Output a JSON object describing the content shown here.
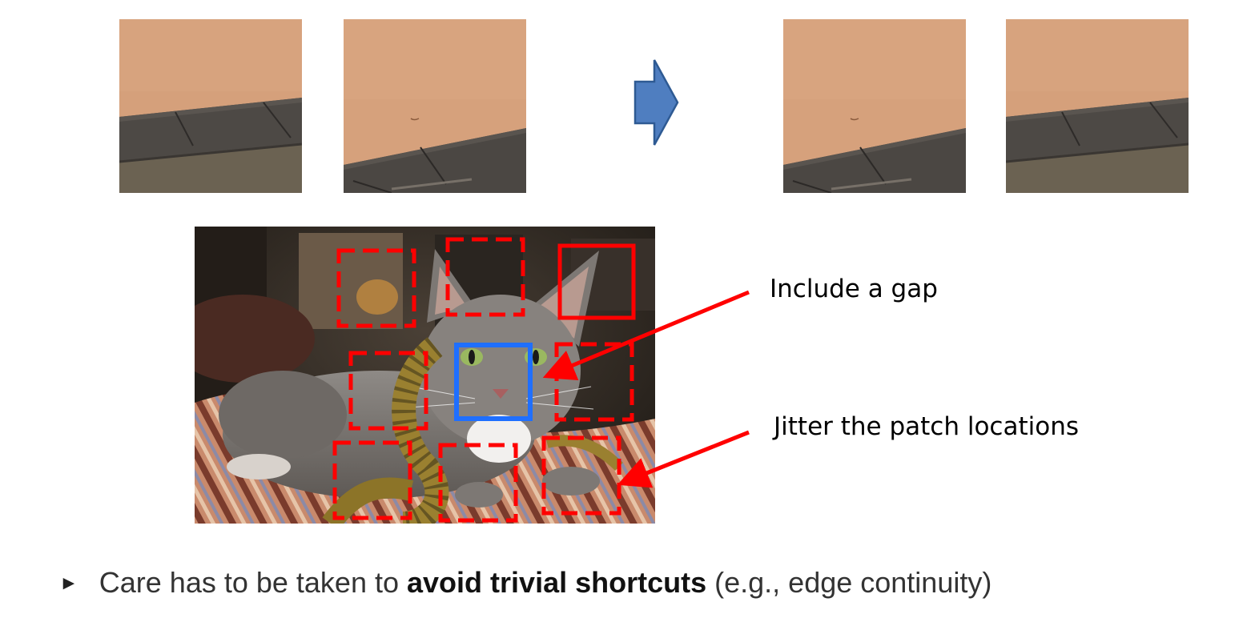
{
  "annotations": {
    "gap": "Include a gap",
    "jitter": "Jitter the patch locations"
  },
  "bullet": {
    "marker": "►",
    "text_before": "Care has to be taken to ",
    "text_bold": "avoid trivial shortcuts",
    "text_after": " (e.g., edge continuity)"
  },
  "colors": {
    "arrow_fill": "#4f7ec0",
    "arrow_stroke": "#2e5a93",
    "annotation_arrow": "#ff0000",
    "dashed_box": "#ff0000",
    "center_box": "#1f6fff",
    "patch_wall": "#d6a07a",
    "patch_shelf": "#4f4b47"
  }
}
